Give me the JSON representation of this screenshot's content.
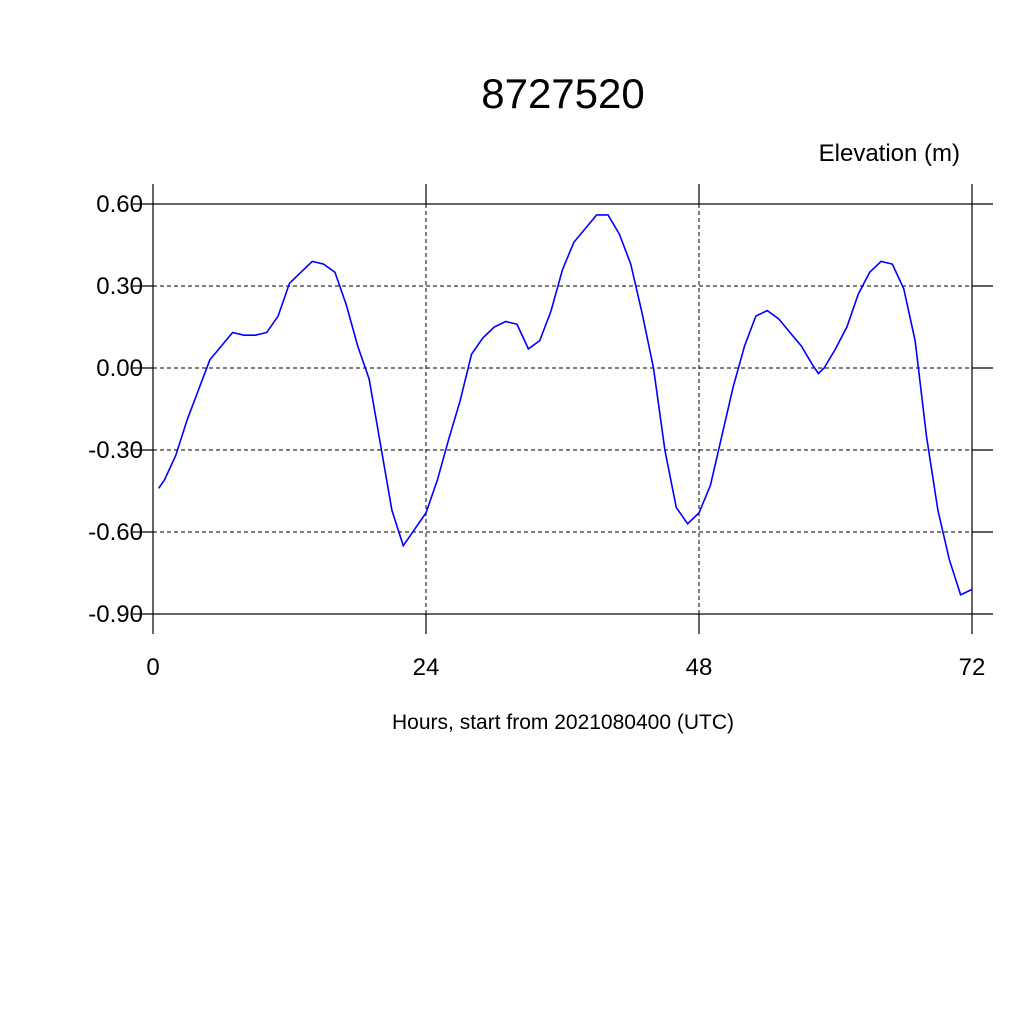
{
  "chart_data": {
    "type": "line",
    "title": "8727520",
    "subtitle": "Elevation (m)",
    "x_label": "Hours, start from 2021080400 (UTC)",
    "x": [
      0.5,
      1,
      2,
      3,
      4,
      5,
      6,
      7,
      8,
      9,
      10,
      11,
      12,
      13,
      14,
      15,
      16,
      17,
      18,
      19,
      20,
      21,
      22,
      23,
      24,
      25,
      26,
      27,
      28,
      29,
      30,
      31,
      32,
      33,
      34,
      35,
      36,
      37,
      38,
      39,
      40,
      41,
      42,
      43,
      44,
      45,
      46,
      47,
      48,
      49,
      50,
      51,
      52,
      53,
      54,
      55,
      56,
      57,
      58,
      58.5,
      59,
      60,
      61,
      62,
      63,
      64,
      65,
      66,
      67,
      68,
      69,
      70,
      71,
      72
    ],
    "series": [
      {
        "name": "Elevation",
        "color": "#0000ff",
        "values": [
          -0.44,
          -0.41,
          -0.32,
          -0.19,
          -0.08,
          0.03,
          0.08,
          0.13,
          0.12,
          0.12,
          0.13,
          0.19,
          0.31,
          0.35,
          0.39,
          0.38,
          0.35,
          0.23,
          0.08,
          -0.04,
          -0.28,
          -0.52,
          -0.65,
          -0.59,
          -0.53,
          -0.41,
          -0.26,
          -0.12,
          0.05,
          0.11,
          0.15,
          0.17,
          0.16,
          0.07,
          0.1,
          0.21,
          0.36,
          0.46,
          0.51,
          0.56,
          0.56,
          0.49,
          0.38,
          0.2,
          0.0,
          -0.3,
          -0.51,
          -0.57,
          -0.53,
          -0.43,
          -0.25,
          -0.07,
          0.08,
          0.19,
          0.21,
          0.18,
          0.13,
          0.08,
          0.01,
          -0.02,
          0.0,
          0.07,
          0.15,
          0.27,
          0.35,
          0.39,
          0.38,
          0.29,
          0.1,
          -0.25,
          -0.52,
          -0.7,
          -0.83,
          -0.81
        ]
      }
    ],
    "xlim": [
      0,
      72
    ],
    "xticks": [
      0,
      24,
      48,
      72
    ],
    "ylim": [
      -0.9,
      0.6
    ],
    "yticks": [
      {
        "value": -0.9,
        "label": "-0.90"
      },
      {
        "value": -0.6,
        "label": "-0.60"
      },
      {
        "value": -0.3,
        "label": "-0.30"
      },
      {
        "value": 0,
        "label": "0.00"
      },
      {
        "value": 0.3,
        "label": "0.30"
      },
      {
        "value": 0.6,
        "label": "0.60"
      }
    ],
    "grid": true
  }
}
